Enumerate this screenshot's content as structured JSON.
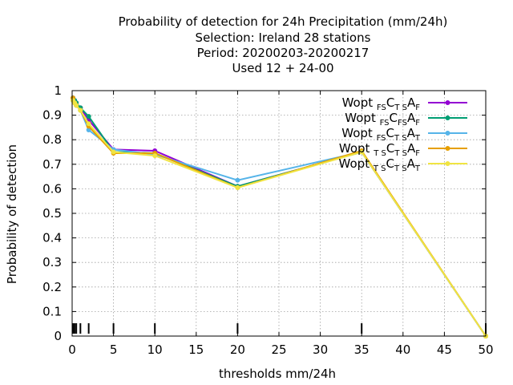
{
  "title_lines": [
    "Probability of detection  for 24h Precipitation (mm/24h)",
    "Selection: Ireland     28 stations",
    "Period: 20200203-20200217",
    "Used  12 + 24-00"
  ],
  "chart_data": {
    "type": "line",
    "title": "Probability of detection  for 24h Precipitation (mm/24h)",
    "xlabel": "thresholds mm/24h",
    "ylabel": "Probability of detection",
    "xlim": [
      0,
      50
    ],
    "ylim": [
      0,
      1
    ],
    "xticks": [
      "0",
      "5",
      "10",
      "15",
      "20",
      "25",
      "30",
      "35",
      "40",
      "45",
      "50"
    ],
    "yticks": [
      "0",
      "0.1",
      "0.2",
      "0.3",
      "0.4",
      "0.5",
      "0.6",
      "0.7",
      "0.8",
      "0.9",
      "1"
    ],
    "grid": true,
    "legend_position": "top-right",
    "threshold_marks": [
      0.1,
      0.3,
      0.5,
      1,
      2,
      5,
      10,
      20,
      35,
      50
    ],
    "x": [
      0.1,
      0.3,
      0.5,
      1,
      2,
      5,
      10,
      20,
      35,
      50
    ],
    "series": [
      {
        "legend": [
          {
            "t": "Wopt "
          },
          {
            "t": "FS",
            "sub": true
          },
          {
            "t": "C"
          },
          {
            "t": "T S",
            "sub": true
          },
          {
            "t": "A"
          },
          {
            "t": "F",
            "sub": true
          }
        ],
        "color": "#9400d3",
        "values": [
          0.97,
          0.96,
          0.95,
          0.93,
          0.88,
          0.76,
          0.755,
          0.61,
          0.75,
          0
        ]
      },
      {
        "legend": [
          {
            "t": "Wopt "
          },
          {
            "t": "FS",
            "sub": true
          },
          {
            "t": "C"
          },
          {
            "t": "FS",
            "sub": true
          },
          {
            "t": "A"
          },
          {
            "t": "F",
            "sub": true
          }
        ],
        "color": "#009e73",
        "values": [
          0.97,
          0.96,
          0.95,
          0.93,
          0.895,
          0.75,
          0.745,
          0.61,
          0.75,
          0
        ]
      },
      {
        "legend": [
          {
            "t": "Wopt "
          },
          {
            "t": "FS",
            "sub": true
          },
          {
            "t": "C"
          },
          {
            "t": "T S",
            "sub": true
          },
          {
            "t": "A"
          },
          {
            "t": "T",
            "sub": true
          }
        ],
        "color": "#56b4e9",
        "values": [
          0.96,
          0.95,
          0.94,
          0.92,
          0.84,
          0.76,
          0.74,
          0.635,
          0.75,
          0
        ]
      },
      {
        "legend": [
          {
            "t": "Wopt "
          },
          {
            "t": "T S",
            "sub": true
          },
          {
            "t": "C"
          },
          {
            "t": "T S",
            "sub": true
          },
          {
            "t": "A"
          },
          {
            "t": "F",
            "sub": true
          }
        ],
        "color": "#e69f00",
        "values": [
          0.97,
          0.95,
          0.94,
          0.92,
          0.855,
          0.745,
          0.745,
          0.605,
          0.755,
          0
        ]
      },
      {
        "legend": [
          {
            "t": "Wopt "
          },
          {
            "t": "T S",
            "sub": true
          },
          {
            "t": "C"
          },
          {
            "t": "T S",
            "sub": true
          },
          {
            "t": "A"
          },
          {
            "t": "T",
            "sub": true
          }
        ],
        "color": "#f0e442",
        "values": [
          0.96,
          0.95,
          0.94,
          0.92,
          0.865,
          0.75,
          0.735,
          0.605,
          0.75,
          0
        ]
      }
    ]
  }
}
